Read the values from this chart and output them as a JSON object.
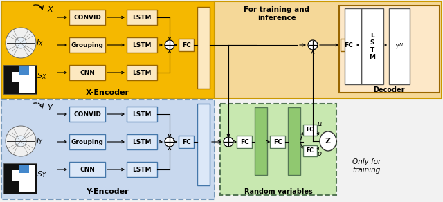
{
  "fig_width": 6.4,
  "fig_height": 2.92,
  "bg_color": "#f2f2f2",
  "orange_bg": "#f5b800",
  "light_orange_bg": "#f5d898",
  "blue_bg": "#c8d8ee",
  "green_bg": "#90c870",
  "light_green_bg": "#c8e8b0",
  "box_fill_orange": "#fce8c0",
  "box_fill_blue": "#dce8f8",
  "white": "#ffffff",
  "black": "#000000",
  "title_top": "For training and\ninference",
  "x_encoder_label": "X-Encoder",
  "y_encoder_label": "Y-Encoder",
  "decoder_label": "Decoder",
  "random_var_label": "Random variables"
}
